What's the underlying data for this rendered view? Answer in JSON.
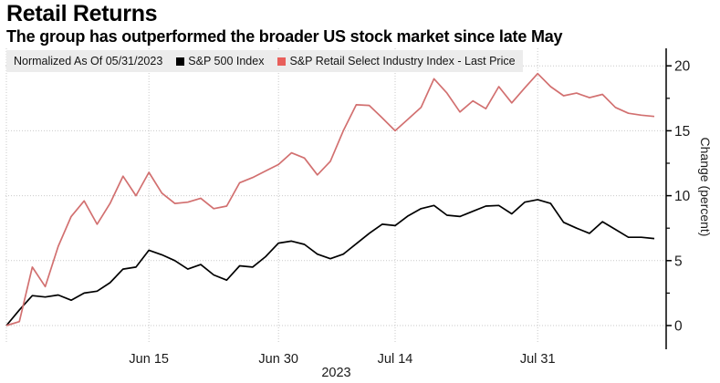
{
  "header": {
    "title": "Retail Returns",
    "subtitle": "The group has outperformed the broader US stock market since late May"
  },
  "legend": {
    "note": "Normalized As Of 05/31/2023",
    "series": [
      {
        "label": "S&P 500 Index",
        "color": "#000000"
      },
      {
        "label": "S&P Retail Select Industry Index - Last Price",
        "color": "#e85f5b"
      }
    ]
  },
  "colors": {
    "background": "#ffffff",
    "legend_bar": "#ececec",
    "grid": "#c9c9c9",
    "axis": "#000000",
    "sp500_line": "#000000",
    "retail_line": "#d27070"
  },
  "chart_data": {
    "type": "line",
    "title": "Retail Returns",
    "subtitle": "The group has outperformed the broader US stock market since late May",
    "normalized_note": "Normalized As Of 05/31/2023",
    "ylabel": "Change (percent)",
    "ylim": [
      0,
      20
    ],
    "y_ticks": [
      0,
      5,
      10,
      15,
      20
    ],
    "y_minor_ticks": [
      2.5,
      7.5,
      12.5,
      17.5
    ],
    "grid": true,
    "legend_position": "top",
    "x_axis_year_label": "2023",
    "x_ticks": [
      {
        "index": 0,
        "label": ""
      },
      {
        "index": 11,
        "label": "Jun 15"
      },
      {
        "index": 21,
        "label": "Jun 30"
      },
      {
        "index": 30,
        "label": "Jul 14"
      },
      {
        "index": 41,
        "label": "Jul 31"
      }
    ],
    "series": [
      {
        "name": "S&P 500 Index",
        "color": "#000000",
        "values": [
          0,
          1.2,
          2.3,
          2.2,
          2.35,
          1.95,
          2.5,
          2.65,
          3.3,
          4.35,
          4.5,
          5.8,
          5.45,
          5.0,
          4.35,
          4.7,
          3.9,
          3.5,
          4.6,
          4.5,
          5.3,
          6.35,
          6.5,
          6.25,
          5.5,
          5.15,
          5.5,
          6.3,
          7.1,
          7.8,
          7.7,
          8.45,
          9.0,
          9.25,
          8.5,
          8.4,
          8.8,
          9.2,
          9.25,
          8.6,
          9.5,
          9.7,
          9.4,
          7.95,
          7.5,
          7.1,
          8.0,
          7.4,
          6.8,
          6.8,
          6.7
        ]
      },
      {
        "name": "S&P Retail Select Industry Index - Last Price",
        "color": "#d27070",
        "values": [
          0,
          0.3,
          4.5,
          3.0,
          6.1,
          8.4,
          9.6,
          7.8,
          9.4,
          11.5,
          10.0,
          11.8,
          10.2,
          9.4,
          9.5,
          9.8,
          9.0,
          9.2,
          11.0,
          11.4,
          11.9,
          12.4,
          13.3,
          12.9,
          11.6,
          12.65,
          15.0,
          17.0,
          16.95,
          16.0,
          15.0,
          15.9,
          16.8,
          19.0,
          17.9,
          16.45,
          17.3,
          16.7,
          18.4,
          17.15,
          18.3,
          19.4,
          18.4,
          17.7,
          17.9,
          17.55,
          17.8,
          16.8,
          16.35,
          16.2,
          16.1
        ]
      }
    ]
  }
}
